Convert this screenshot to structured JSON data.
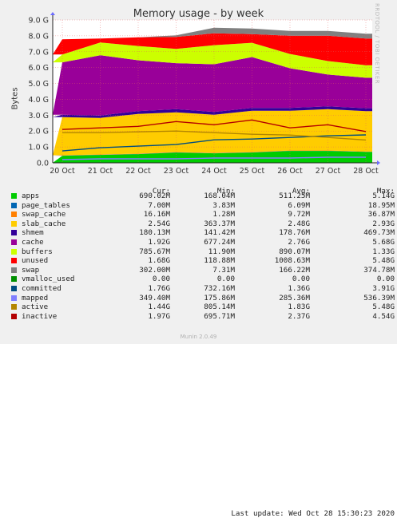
{
  "chart_data": {
    "type": "area",
    "title": "Memory usage - by week",
    "ylabel": "Bytes",
    "ylim": [
      0,
      9.0
    ],
    "y_ticks": [
      "0.0",
      "1.0 G",
      "2.0 G",
      "3.0 G",
      "4.0 G",
      "5.0 G",
      "6.0 G",
      "7.0 G",
      "8.0 G",
      "9.0 G"
    ],
    "categories": [
      "20 Oct",
      "21 Oct",
      "22 Oct",
      "23 Oct",
      "24 Oct",
      "25 Oct",
      "26 Oct",
      "27 Oct",
      "28 Oct"
    ],
    "grid": true,
    "stacked_series": [
      {
        "name": "apps",
        "color": "#00cc00",
        "values": [
          0.45,
          0.5,
          0.55,
          0.65,
          0.6,
          0.65,
          0.75,
          0.75,
          0.69
        ]
      },
      {
        "name": "page_tables",
        "color": "#0066b3",
        "values": [
          0.01,
          0.01,
          0.01,
          0.01,
          0.01,
          0.01,
          0.01,
          0.01,
          0.01
        ]
      },
      {
        "name": "swap_cache",
        "color": "#ff8000",
        "values": [
          0.02,
          0.02,
          0.02,
          0.02,
          0.02,
          0.02,
          0.02,
          0.02,
          0.02
        ]
      },
      {
        "name": "slab_cache",
        "color": "#ffcc00",
        "values": [
          2.4,
          2.3,
          2.5,
          2.5,
          2.4,
          2.6,
          2.5,
          2.6,
          2.54
        ]
      },
      {
        "name": "shmem",
        "color": "#330099",
        "values": [
          0.15,
          0.15,
          0.18,
          0.2,
          0.18,
          0.18,
          0.18,
          0.18,
          0.18
        ]
      },
      {
        "name": "cache",
        "color": "#990099",
        "values": [
          3.3,
          3.8,
          3.2,
          2.9,
          3.0,
          3.2,
          2.5,
          2.0,
          1.92
        ]
      },
      {
        "name": "buffers",
        "color": "#ccff00",
        "values": [
          0.5,
          0.8,
          0.9,
          0.9,
          1.2,
          0.9,
          0.9,
          0.85,
          0.79
        ]
      },
      {
        "name": "unused",
        "color": "#ff0000",
        "values": [
          0.95,
          0.25,
          0.55,
          0.75,
          0.75,
          0.55,
          1.15,
          1.6,
          1.68
        ]
      },
      {
        "name": "swap",
        "color": "#808080",
        "values": [
          0.0,
          0.0,
          0.0,
          0.1,
          0.35,
          0.35,
          0.3,
          0.3,
          0.3
        ]
      }
    ],
    "line_series": [
      {
        "name": "committed",
        "color": "#004d80",
        "values": [
          0.75,
          0.95,
          1.05,
          1.15,
          1.45,
          1.5,
          1.6,
          1.7,
          1.76
        ]
      },
      {
        "name": "mapped",
        "color": "#8080ff",
        "values": [
          0.2,
          0.25,
          0.25,
          0.25,
          0.3,
          0.3,
          0.3,
          0.35,
          0.35
        ]
      },
      {
        "name": "active",
        "color": "#b38600",
        "values": [
          1.9,
          1.9,
          1.95,
          2.0,
          1.9,
          1.8,
          1.75,
          1.6,
          1.44
        ]
      },
      {
        "name": "inactive",
        "color": "#b30000",
        "values": [
          2.1,
          2.2,
          2.3,
          2.6,
          2.4,
          2.7,
          2.2,
          2.4,
          1.97
        ]
      }
    ]
  },
  "legend": {
    "headers": {
      "cur": "Cur:",
      "min": "Min:",
      "avg": "Avg:",
      "max": "Max:"
    },
    "rows": [
      {
        "name": "apps",
        "color": "#00cc00",
        "cur": "690.02M",
        "min": "168.04M",
        "avg": "511.25M",
        "max": "5.14G"
      },
      {
        "name": "page_tables",
        "color": "#0066b3",
        "cur": "7.00M",
        "min": "3.83M",
        "avg": "6.09M",
        "max": "18.95M"
      },
      {
        "name": "swap_cache",
        "color": "#ff8000",
        "cur": "16.16M",
        "min": "1.28M",
        "avg": "9.72M",
        "max": "36.87M"
      },
      {
        "name": "slab_cache",
        "color": "#ffcc00",
        "cur": "2.54G",
        "min": "363.37M",
        "avg": "2.48G",
        "max": "2.93G"
      },
      {
        "name": "shmem",
        "color": "#330099",
        "cur": "180.13M",
        "min": "141.42M",
        "avg": "178.76M",
        "max": "469.73M"
      },
      {
        "name": "cache",
        "color": "#990099",
        "cur": "1.92G",
        "min": "677.24M",
        "avg": "2.76G",
        "max": "5.68G"
      },
      {
        "name": "buffers",
        "color": "#ccff00",
        "cur": "785.67M",
        "min": "11.90M",
        "avg": "890.07M",
        "max": "1.33G"
      },
      {
        "name": "unused",
        "color": "#ff0000",
        "cur": "1.68G",
        "min": "118.88M",
        "avg": "1008.63M",
        "max": "5.48G"
      },
      {
        "name": "swap",
        "color": "#808080",
        "cur": "302.00M",
        "min": "7.31M",
        "avg": "166.22M",
        "max": "374.78M"
      },
      {
        "name": "vmalloc_used",
        "color": "#008f00",
        "cur": "0.00",
        "min": "0.00",
        "avg": "0.00",
        "max": "0.00"
      },
      {
        "name": "committed",
        "color": "#004d80",
        "cur": "1.76G",
        "min": "732.16M",
        "avg": "1.36G",
        "max": "3.91G"
      },
      {
        "name": "mapped",
        "color": "#8080ff",
        "cur": "349.40M",
        "min": "175.86M",
        "avg": "285.36M",
        "max": "536.39M"
      },
      {
        "name": "active",
        "color": "#b38600",
        "cur": "1.44G",
        "min": "805.14M",
        "avg": "1.83G",
        "max": "5.48G"
      },
      {
        "name": "inactive",
        "color": "#b30000",
        "cur": "1.97G",
        "min": "695.71M",
        "avg": "2.37G",
        "max": "4.54G"
      }
    ]
  },
  "last_update": "Last update: Wed Oct 28 15:30:23 2020",
  "watermark": "Munin 2.0.49",
  "side_text": "RRDTOOL / TOBI OETIKER"
}
